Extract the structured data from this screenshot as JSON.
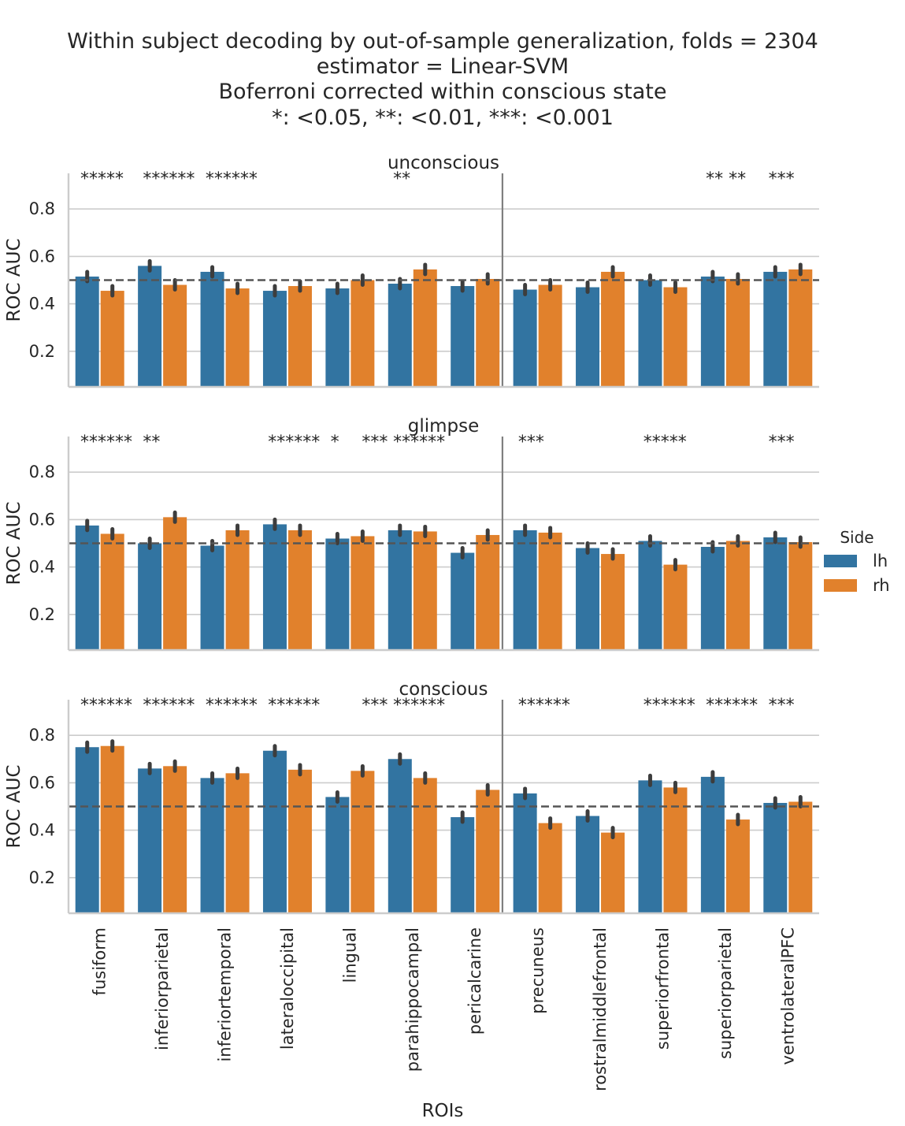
{
  "title": [
    "Within subject decoding by out-of-sample generalization, folds = 2304",
    "estimator = Linear-SVM",
    "Boferroni corrected within conscious state",
    "*: <0.05, **: <0.01, ***: <0.001"
  ],
  "chart_data": {
    "type": "bar",
    "xlabel": "ROIs",
    "ylabel": "ROC AUC",
    "ylim": [
      0.05,
      0.95
    ],
    "yticks": [
      0.2,
      0.4,
      0.6,
      0.8
    ],
    "chance_level": 0.5,
    "grid": "horizontal",
    "categories": [
      "fusiform",
      "inferiorparietal",
      "inferiortemporal",
      "lateraloccipital",
      "lingual",
      "parahippocampal",
      "pericalcarine",
      "precuneus",
      "rostralmiddlefrontal",
      "superiorfrontal",
      "superiorparietal",
      "ventrolateralPFC"
    ],
    "legend": {
      "title": "Side",
      "position": "right",
      "entries": [
        "lh",
        "rh"
      ]
    },
    "colors": {
      "lh": "#3274a1",
      "rh": "#e1812c"
    },
    "panels": [
      {
        "title": "unconscious",
        "series": [
          {
            "name": "lh",
            "values": [
              0.515,
              0.56,
              0.535,
              0.455,
              0.465,
              0.485,
              0.475,
              0.46,
              0.47,
              0.5,
              0.515,
              0.535
            ]
          },
          {
            "name": "rh",
            "values": [
              0.455,
              0.48,
              0.465,
              0.475,
              0.5,
              0.545,
              0.505,
              0.48,
              0.535,
              0.47,
              0.505,
              0.545
            ]
          }
        ],
        "significance": [
          {
            "x": 0.0,
            "text": "*****"
          },
          {
            "x": 1.0,
            "text": "******"
          },
          {
            "x": 2.0,
            "text": "******"
          },
          {
            "x": 5.0,
            "text": "**"
          },
          {
            "x": 10.0,
            "text": "** **"
          },
          {
            "x": 11.0,
            "text": "***"
          }
        ]
      },
      {
        "title": "glimpse",
        "series": [
          {
            "name": "lh",
            "values": [
              0.575,
              0.5,
              0.49,
              0.58,
              0.52,
              0.555,
              0.46,
              0.555,
              0.48,
              0.51,
              0.485,
              0.525
            ]
          },
          {
            "name": "rh",
            "values": [
              0.54,
              0.61,
              0.555,
              0.555,
              0.53,
              0.55,
              0.535,
              0.545,
              0.455,
              0.41,
              0.51,
              0.505
            ]
          }
        ],
        "significance": [
          {
            "x": 0.0,
            "text": "******"
          },
          {
            "x": 1.0,
            "text": "**"
          },
          {
            "x": 3.0,
            "text": "******"
          },
          {
            "x": 4.0,
            "text": "*"
          },
          {
            "x": 4.5,
            "text": "***"
          },
          {
            "x": 5.0,
            "text": "******"
          },
          {
            "x": 7.0,
            "text": "***"
          },
          {
            "x": 9.0,
            "text": "*****"
          },
          {
            "x": 11.0,
            "text": "***"
          }
        ]
      },
      {
        "title": "conscious",
        "series": [
          {
            "name": "lh",
            "values": [
              0.75,
              0.66,
              0.62,
              0.735,
              0.54,
              0.7,
              0.455,
              0.555,
              0.46,
              0.61,
              0.625,
              0.515
            ]
          },
          {
            "name": "rh",
            "values": [
              0.755,
              0.67,
              0.64,
              0.655,
              0.65,
              0.62,
              0.57,
              0.43,
              0.39,
              0.58,
              0.445,
              0.52
            ]
          }
        ],
        "significance": [
          {
            "x": 0.0,
            "text": "******"
          },
          {
            "x": 1.0,
            "text": "******"
          },
          {
            "x": 2.0,
            "text": "******"
          },
          {
            "x": 3.0,
            "text": "******"
          },
          {
            "x": 4.5,
            "text": "***"
          },
          {
            "x": 5.0,
            "text": "******"
          },
          {
            "x": 7.0,
            "text": "******"
          },
          {
            "x": 9.0,
            "text": "******"
          },
          {
            "x": 10.0,
            "text": "******"
          },
          {
            "x": 11.0,
            "text": "***"
          }
        ]
      }
    ]
  }
}
